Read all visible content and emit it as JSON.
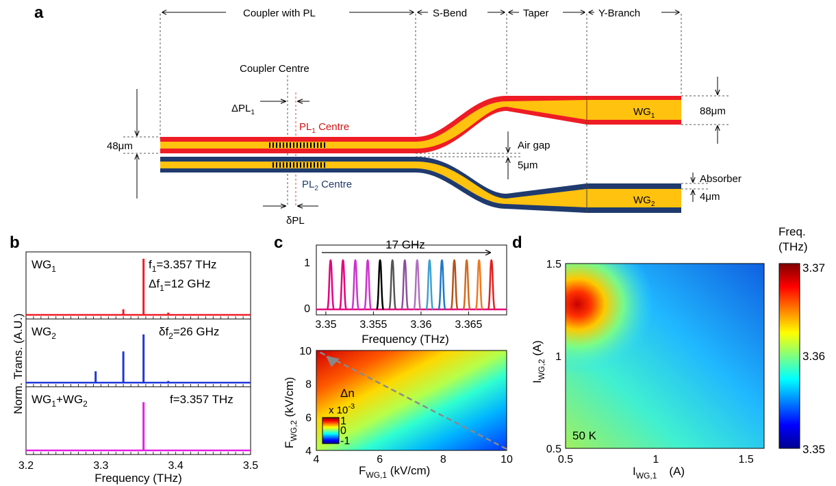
{
  "panel_a": {
    "label": "a",
    "sections": [
      "Coupler with PL",
      "S-Bend",
      "Taper",
      "Y-Branch"
    ],
    "coupler_centre": "Coupler  Centre",
    "delta_pl1": "ΔPL",
    "delta_pl1_sub": "1",
    "pl1_centre": "PL",
    "pl1_centre_sub": "1",
    "pl1_centre_suffix": " Centre",
    "pl2_centre": "PL",
    "pl2_centre_sub": "2",
    "pl2_centre_suffix": " Centre",
    "delta_pl": "δPL",
    "height_label": "48μm",
    "air_gap": "Air gap",
    "air_gap_value": "5μm",
    "wg1": "WG",
    "wg1_sub": "1",
    "wg2": "WG",
    "wg2_sub": "2",
    "wg_width": "88μm",
    "absorber": "Absorber",
    "absorber_value": "4μm",
    "colors": {
      "wg1_outer": "#ee1c24",
      "wg2_outer": "#1f3a6e",
      "core": "#ffc20e"
    }
  },
  "panel_b": {
    "label": "b",
    "ylabel": "Norm. Trans. (A.U.)",
    "xlabel": "Frequency (THz)",
    "xticks": [
      "3.2",
      "3.3",
      "3.4",
      "3.5"
    ],
    "traces": [
      {
        "name": "WG",
        "sub": "1",
        "color": "#ee1c24",
        "ann1": "f",
        "ann1_sub": "1",
        "ann1_val": "=3.357 THz",
        "ann2": "Δf",
        "ann2_sub": "1",
        "ann2_val": "=12 GHz",
        "peaks_thz": [
          3.33,
          3.357,
          3.39
        ],
        "heights": [
          0.1,
          1.0,
          0.04
        ]
      },
      {
        "name": "WG",
        "sub": "2",
        "color": "#1f35d9",
        "ann1": "δf",
        "ann1_sub": "2",
        "ann1_val": "=26 GHz",
        "peaks_thz": [
          3.293,
          3.33,
          3.357,
          3.39
        ],
        "heights": [
          0.2,
          0.55,
          0.85,
          0.03
        ]
      },
      {
        "name": "WG",
        "sub": "1",
        "name2": "+WG",
        "sub2": "2",
        "color": "#e61ee6",
        "ann1": "f=3.357 THz",
        "peaks_thz": [
          3.357
        ],
        "heights": [
          0.85
        ]
      }
    ]
  },
  "panel_c": {
    "label": "c",
    "top": {
      "span_label": "17 GHz",
      "xlabel": "Frequency (THz)",
      "xticks": [
        "3.35",
        "3.355",
        "3.36",
        "3.365"
      ],
      "yticks": [
        "0",
        "1"
      ],
      "peaks_thz": [
        3.3505,
        3.3518,
        3.3531,
        3.3544,
        3.3557,
        3.357,
        3.3583,
        3.3596,
        3.3609,
        3.3622,
        3.3635,
        3.3648,
        3.3661,
        3.3674
      ],
      "peak_colors": [
        "#e5007e",
        "#e5007e",
        "#cc33cc",
        "#cc33cc",
        "#000000",
        "#555555",
        "#8a4f9e",
        "#b070c0",
        "#3fa0d0",
        "#1f78c8",
        "#b4521c",
        "#d46a20",
        "#f07820",
        "#e02020"
      ]
    },
    "bottom": {
      "xlabel": "F",
      "xlabel_sub": "WG,1",
      "xlabel_unit": " (kV/cm)",
      "ylabel": "F",
      "ylabel_sub": "WG,2",
      "ylabel_unit": " (kV/cm)",
      "xticks": [
        "4",
        "6",
        "8",
        "10"
      ],
      "yticks": [
        "4",
        "6",
        "8",
        "10"
      ],
      "cbar_title": "Δn",
      "cbar_scale": "x 10",
      "cbar_exp": "-3",
      "cbar_ticks": [
        "1",
        "0",
        "-1"
      ]
    }
  },
  "panel_d": {
    "label": "d",
    "xlabel": "I",
    "xlabel_sub": "WG,1",
    "xlabel_unit": "(A)",
    "ylabel": "I",
    "ylabel_sub": "WG,2",
    "ylabel_unit": " (A)",
    "xticks": [
      "0.5",
      "1",
      "1.5"
    ],
    "yticks": [
      "0.5",
      "1",
      "1.5"
    ],
    "temp_label": "50 K",
    "cbar_title1": "Freq.",
    "cbar_title2": "(THz)",
    "cbar_ticks": [
      "3.37",
      "3.36",
      "3.35"
    ]
  }
}
